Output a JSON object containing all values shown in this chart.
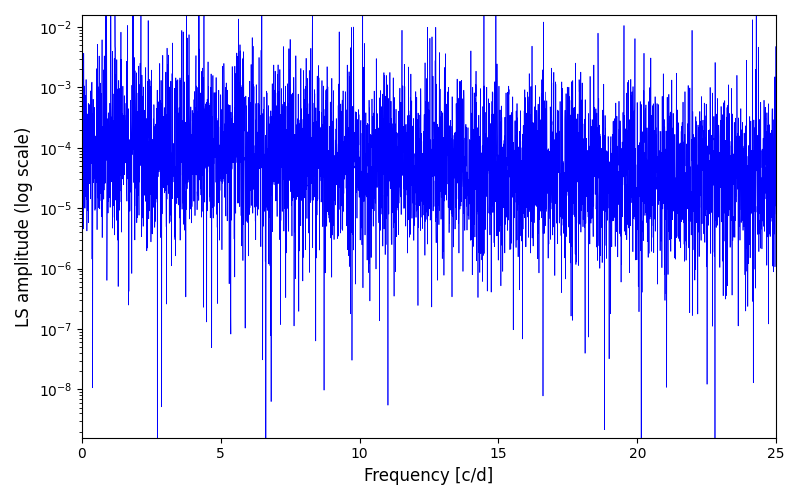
{
  "title": "",
  "xlabel": "Frequency [c/d]",
  "ylabel": "LS amplitude (log scale)",
  "xlim": [
    0,
    25
  ],
  "ylim_log": [
    -8.8,
    -1.8
  ],
  "line_color": "#0000FF",
  "line_width": 0.5,
  "background_color": "#ffffff",
  "yscale": "log",
  "figsize": [
    8.0,
    5.0
  ],
  "dpi": 100,
  "seed": 42,
  "n_points": 5000
}
